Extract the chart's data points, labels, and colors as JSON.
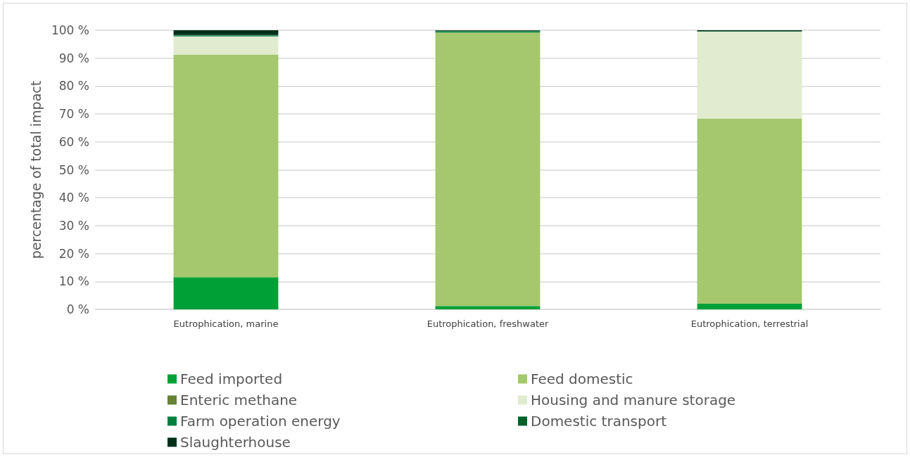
{
  "chart_data": {
    "type": "bar",
    "stacked": true,
    "ylabel": "percentage of total impact",
    "categories": [
      "Eutrophication, marine",
      "Eutrophication, freshwater",
      "Eutrophication, terrestrial"
    ],
    "series": [
      {
        "name": "Feed imported",
        "color": "#00a036",
        "values": [
          11.5,
          1.2,
          2.0
        ]
      },
      {
        "name": "Feed domestic",
        "color": "#a5c76e",
        "values": [
          79.8,
          98.0,
          66.4
        ]
      },
      {
        "name": "Enteric methane",
        "color": "#668234",
        "values": [
          0,
          0,
          0
        ]
      },
      {
        "name": "Housing and manure storage",
        "color": "#e1ebcf",
        "values": [
          6.5,
          0,
          31.1
        ]
      },
      {
        "name": "Farm operation energy",
        "color": "#00803f",
        "values": [
          0.3,
          0.4,
          0
        ]
      },
      {
        "name": "Domestic transport",
        "color": "#00602a",
        "values": [
          0.2,
          0.2,
          0.2
        ]
      },
      {
        "name": "Slaughterhouse",
        "color": "#00301a",
        "values": [
          1.7,
          0.2,
          0.3
        ]
      }
    ],
    "ylim": [
      0,
      100
    ],
    "yticks": [
      {
        "value": 0,
        "label": "0 %"
      },
      {
        "value": 10,
        "label": "10 %"
      },
      {
        "value": 20,
        "label": "20 %"
      },
      {
        "value": 30,
        "label": "30 %"
      },
      {
        "value": 40,
        "label": "40 %"
      },
      {
        "value": 50,
        "label": "50 %"
      },
      {
        "value": 60,
        "label": "60 %"
      },
      {
        "value": 70,
        "label": "70 %"
      },
      {
        "value": 80,
        "label": "80 %"
      },
      {
        "value": 90,
        "label": "90 %"
      },
      {
        "value": 100,
        "label": "100 %"
      }
    ],
    "grid": "y",
    "legend": "bottom"
  }
}
